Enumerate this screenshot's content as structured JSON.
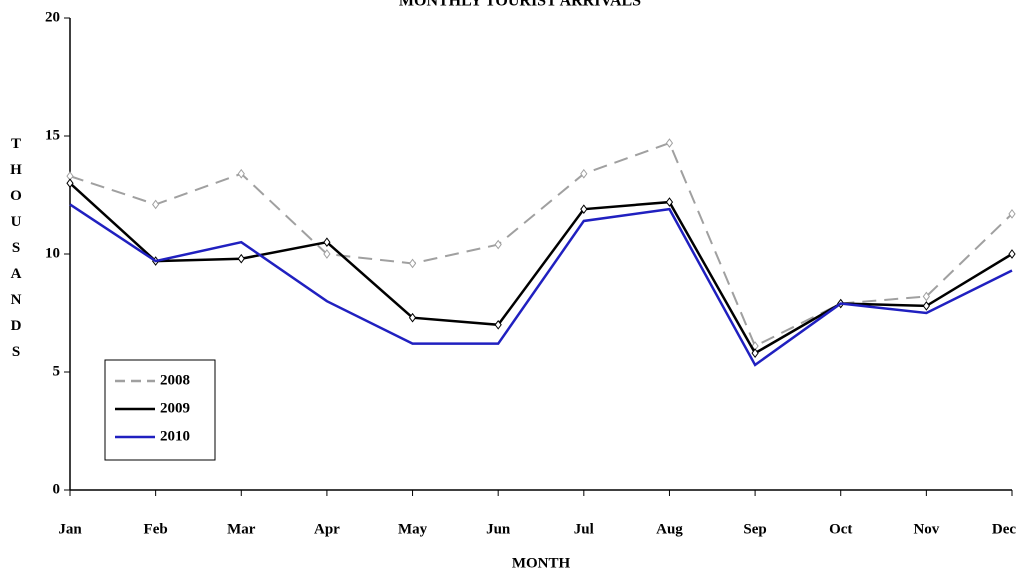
{
  "chart_data": {
    "type": "line",
    "title": "MONTHLY TOURIST ARRIVALS",
    "x_label": "MONTH",
    "y_label": "THOUSANDS",
    "categories": [
      "Jan",
      "Feb",
      "Mar",
      "Apr",
      "May",
      "Jun",
      "Jul",
      "Aug",
      "Sep",
      "Oct",
      "Nov",
      "Dec"
    ],
    "series": [
      {
        "name": "2008",
        "color": "#a0a0a0",
        "dashed": true,
        "markers": true,
        "values": [
          13.3,
          12.1,
          13.4,
          10.0,
          9.6,
          10.4,
          13.4,
          14.7,
          6.1,
          7.9,
          8.2,
          11.7
        ]
      },
      {
        "name": "2009",
        "color": "#000000",
        "dashed": false,
        "markers": true,
        "values": [
          13.0,
          9.7,
          9.8,
          10.5,
          7.3,
          7.0,
          11.9,
          12.2,
          5.8,
          7.9,
          7.8,
          10.0
        ]
      },
      {
        "name": "2010",
        "color": "#2020c0",
        "dashed": false,
        "markers": false,
        "values": [
          12.1,
          9.7,
          10.5,
          8.0,
          6.2,
          6.2,
          11.4,
          11.9,
          5.3,
          7.9,
          7.5,
          9.3
        ]
      }
    ],
    "ylim": [
      0,
      20
    ],
    "yticks": [
      0,
      5,
      10,
      15,
      20
    ],
    "grid": false,
    "legend": "lower left"
  }
}
